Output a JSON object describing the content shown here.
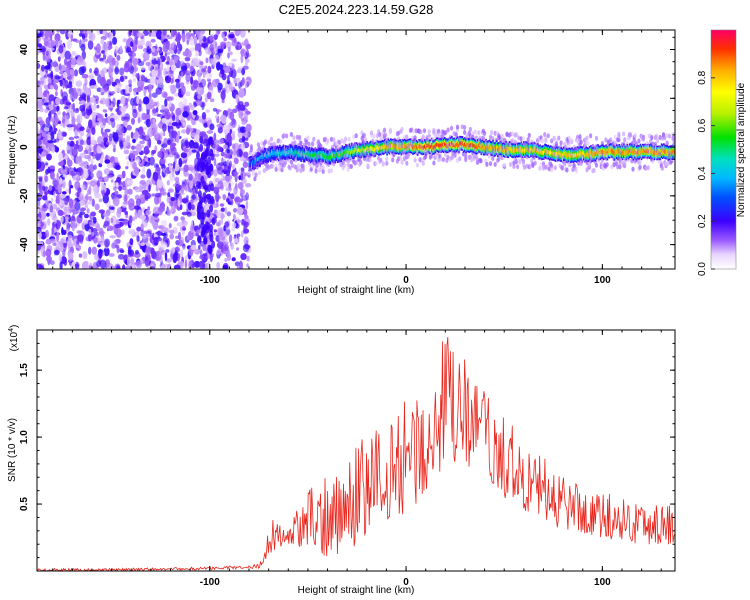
{
  "figure": {
    "title": "C2E5.2024.223.14.59.G28"
  },
  "chart_data": [
    {
      "type": "heatmap",
      "xlabel": "Height of straight line (km)",
      "ylabel": "Frequency (Hz)",
      "xlim": [
        -188,
        137
      ],
      "ylim": [
        -50,
        48
      ],
      "xticks": [
        -100,
        0,
        100
      ],
      "yticks": [
        -40,
        -20,
        0,
        20,
        40
      ],
      "colorbar": {
        "label": "Normalized spectral amplitude",
        "range": [
          0,
          1
        ],
        "ticks": [
          0.0,
          0.2,
          0.4,
          0.6,
          0.8
        ]
      },
      "noise_region_km": [
        -188,
        -80
      ],
      "ridge": {
        "x": [
          -80,
          -70,
          -60,
          -50,
          -40,
          -30,
          -20,
          -10,
          0,
          10,
          20,
          30,
          40,
          50,
          60,
          70,
          80,
          90,
          100,
          110,
          120,
          137
        ],
        "freq_hz": [
          -7,
          -3,
          -2,
          -3,
          -4,
          -2,
          -1,
          0,
          0,
          0,
          1,
          1,
          0,
          -1,
          -1,
          -2,
          -3,
          -3,
          -2,
          -2,
          -2,
          -2
        ],
        "amplitude": [
          0.3,
          0.4,
          0.45,
          0.5,
          0.55,
          0.6,
          0.7,
          0.8,
          0.85,
          0.9,
          0.92,
          0.9,
          0.85,
          0.82,
          0.8,
          0.78,
          0.8,
          0.8,
          0.85,
          0.85,
          0.85,
          0.85
        ]
      }
    },
    {
      "type": "line",
      "xlabel": "Height of straight line (km)",
      "ylabel": "SNR (10 * v/v)",
      "y_multiplier_label": "(x10",
      "y_multiplier_exp": "4",
      "xlim": [
        -188,
        137
      ],
      "ylim": [
        0,
        1.8
      ],
      "xticks": [
        -100,
        0,
        100
      ],
      "yticks": [
        0.5,
        1.0,
        1.5
      ],
      "series": [
        {
          "color": "#e8251c",
          "envelope": {
            "x": [
              -188,
              -150,
              -100,
              -75,
              -68,
              -60,
              -50,
              -40,
              -30,
              -20,
              -10,
              0,
              10,
              20,
              30,
              40,
              50,
              60,
              70,
              80,
              90,
              100,
              110,
              120,
              137
            ],
            "low": [
              0.0,
              0.0,
              0.01,
              0.02,
              0.15,
              0.2,
              0.15,
              0.1,
              0.15,
              0.25,
              0.3,
              0.45,
              0.55,
              0.75,
              0.8,
              0.65,
              0.55,
              0.45,
              0.38,
              0.3,
              0.28,
              0.25,
              0.22,
              0.2,
              0.2
            ],
            "high": [
              0.02,
              0.02,
              0.03,
              0.05,
              0.4,
              0.35,
              0.6,
              0.75,
              0.9,
              1.05,
              1.2,
              1.3,
              1.45,
              1.8,
              1.6,
              1.35,
              1.15,
              1.0,
              0.85,
              0.75,
              0.65,
              0.6,
              0.55,
              0.55,
              0.5
            ]
          }
        }
      ]
    }
  ]
}
